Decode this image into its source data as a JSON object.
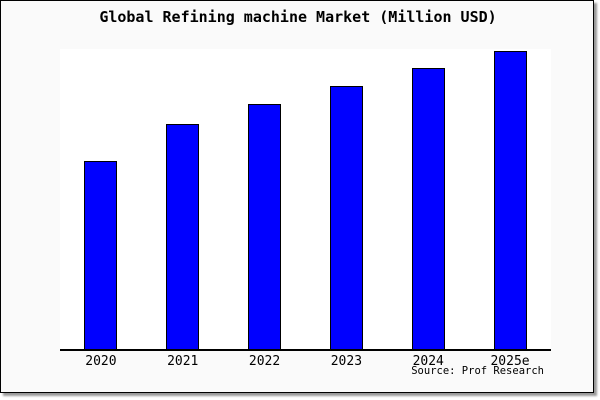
{
  "chart": {
    "title": "Global Refining machine Market (Million USD)",
    "source": "Source: Prof Research",
    "colors": {
      "bar_fill": "#0000ff",
      "bar_border": "#000000",
      "paper_background": "#fafafa",
      "plot_background": "#ffffff",
      "frame_border": "#000000",
      "shadow": "#999999"
    }
  },
  "chart_data": {
    "type": "bar",
    "title": "Global Refining machine Market (Million USD)",
    "categories": [
      "2020",
      "2021",
      "2022",
      "2023",
      "2024",
      "2025e"
    ],
    "values": [
      62.7,
      75.0,
      81.7,
      87.7,
      93.7,
      99.3
    ],
    "xlabel": "",
    "ylabel": "",
    "ylim": [
      0,
      100
    ],
    "grid": false,
    "legend": "none",
    "value_note": "y-axis has no tick labels in the image; values are relative bar heights estimated as percent of plot height (tallest bar 2025e nearly touches plot top)",
    "source": "Source: Prof Research"
  }
}
